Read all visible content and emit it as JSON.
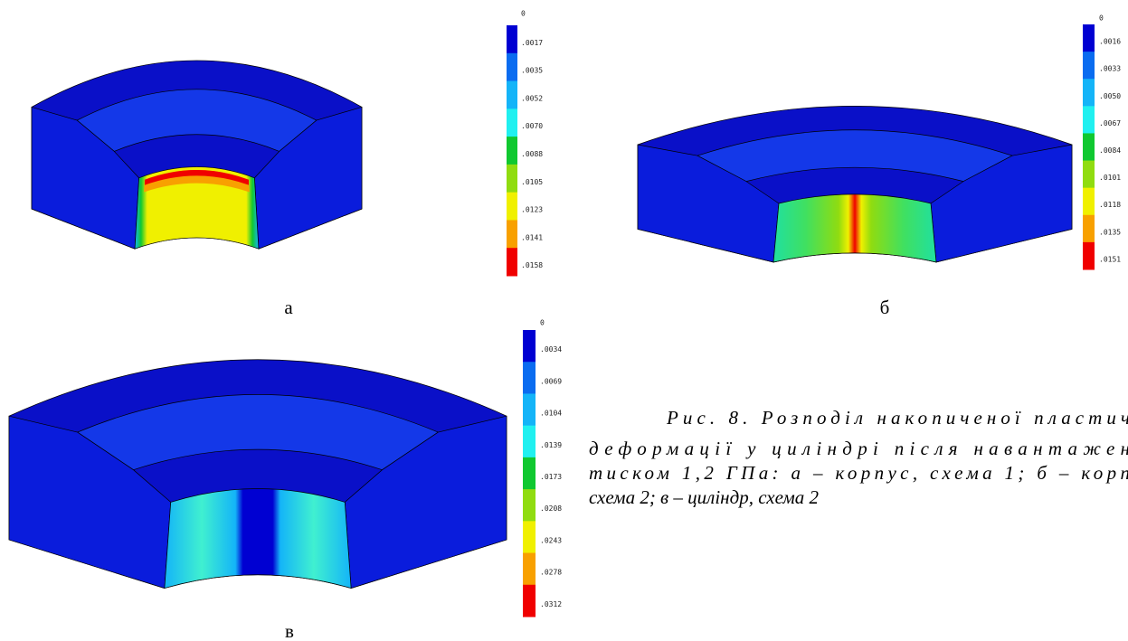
{
  "figure": {
    "legend_colors": [
      "#0000d2",
      "#0a6cf0",
      "#14b4f8",
      "#20f0f0",
      "#10c830",
      "#90dc10",
      "#f0f000",
      "#f8a000",
      "#f00000"
    ],
    "panels": [
      {
        "label": "а",
        "legend": [
          "0",
          ".0017",
          ".0035",
          ".0052",
          ".0070",
          ".0088",
          ".0105",
          ".0123",
          ".0141",
          ".0158"
        ]
      },
      {
        "label": "б",
        "legend": [
          "0",
          ".0016",
          ".0033",
          ".0050",
          ".0067",
          ".0084",
          ".0101",
          ".0118",
          ".0135",
          ".0151"
        ]
      },
      {
        "label": "в",
        "legend": [
          "0",
          ".0034",
          ".0069",
          ".0104",
          ".0139",
          ".0173",
          ".0208",
          ".0243",
          ".0278",
          ".0312"
        ]
      }
    ],
    "caption": [
      "Рис. 8. Розподіл накопиченої пластич",
      "деформації у циліндрі після навантажен",
      "тиском 1,2 ГПа: а – корпус, схема 1; б – корп",
      "схема 2; в – циліндр, схема 2"
    ]
  }
}
